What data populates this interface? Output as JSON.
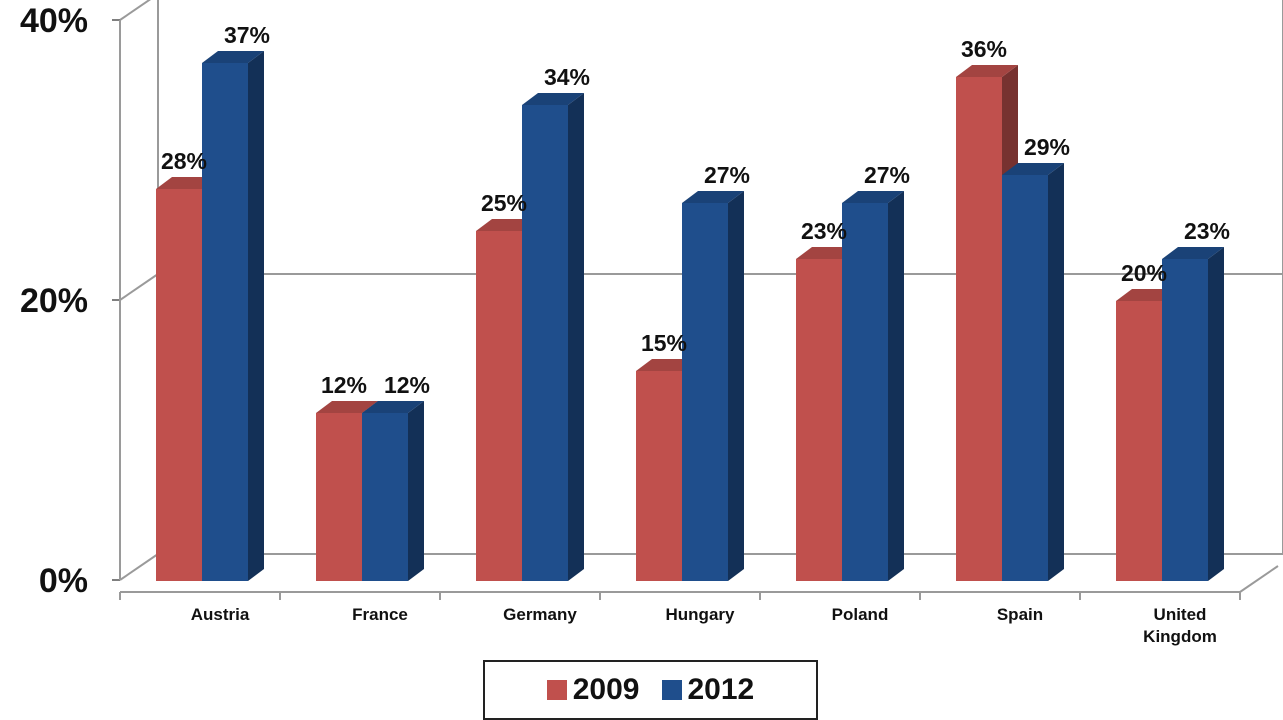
{
  "chart_data": {
    "type": "bar",
    "categories": [
      "Austria",
      "France",
      "Germany",
      "Hungary",
      "Poland",
      "Spain",
      "United Kingdom"
    ],
    "series": [
      {
        "name": "2009",
        "values": [
          28,
          12,
          25,
          15,
          23,
          36,
          20
        ],
        "labels": [
          "28%",
          "12%",
          "25%",
          "15%",
          "23%",
          "36%",
          "20%"
        ],
        "color": "#c0504d"
      },
      {
        "name": "2012",
        "values": [
          37,
          12,
          34,
          27,
          27,
          29,
          23
        ],
        "labels": [
          "37%",
          "12%",
          "34%",
          "27%",
          "27%",
          "29%",
          "23%"
        ],
        "color": "#1f4e8c"
      }
    ],
    "yticks": [
      "0%",
      "20%",
      "40%"
    ],
    "ylim": [
      0,
      40
    ],
    "unit": "%",
    "grid": true,
    "style": "3d-clustered-column",
    "legend_position": "bottom"
  }
}
